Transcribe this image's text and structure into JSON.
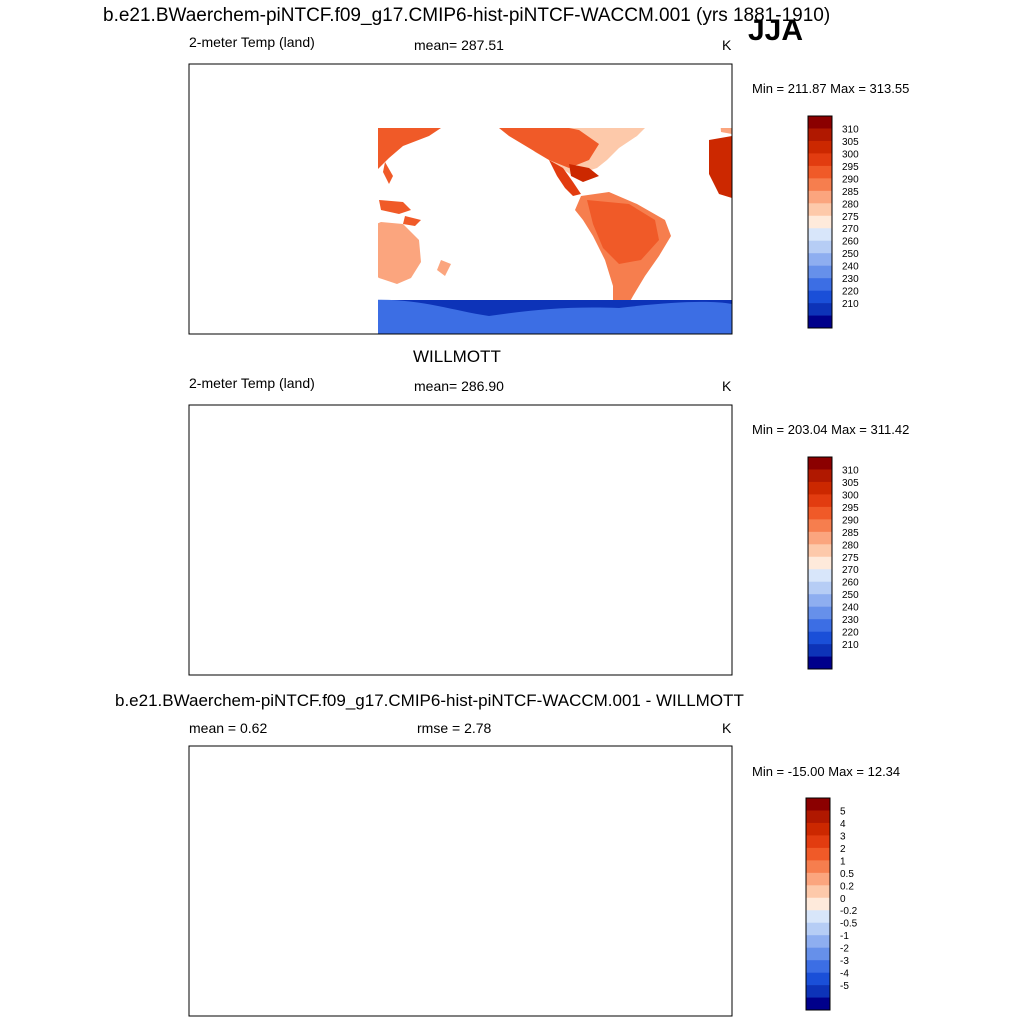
{
  "header": {
    "title": "b.e21.BWaerchem-piNTCF.f09_g17.CMIP6-hist-piNTCF-WACCM.001 (yrs 1881-1910)",
    "season": "JJA"
  },
  "panels": [
    {
      "id": "model",
      "left_label": "2-meter Temp (land)",
      "center_label": "mean= 287.51",
      "units": "K",
      "minmax": "Min = 211.87 Max = 313.55"
    },
    {
      "id": "obs",
      "title": "WILLMOTT",
      "left_label": "2-meter Temp (land)",
      "center_label": "mean= 286.90",
      "units": "K",
      "minmax": "Min = 203.04 Max = 311.42"
    },
    {
      "id": "diff",
      "title": "b.e21.BWaerchem-piNTCF.f09_g17.CMIP6-hist-piNTCF-WACCM.001 - WILLMOTT",
      "left_label": "mean =   0.62",
      "center_label": "rmse =   2.78",
      "units": "K",
      "minmax": "Min = -15.00 Max =  12.34"
    }
  ],
  "chart_data": [
    {
      "type": "heatmap",
      "title": "2-meter Temp (land)",
      "units": "K",
      "mean": 287.51,
      "min": 211.87,
      "max": 313.55,
      "colorbar": {
        "labels": [
          "310",
          "305",
          "300",
          "295",
          "290",
          "285",
          "280",
          "275",
          "270",
          "260",
          "250",
          "240",
          "230",
          "220",
          "210"
        ],
        "colors": [
          "#8b0000",
          "#b01800",
          "#cc2800",
          "#e23c10",
          "#f05a28",
          "#f67e4e",
          "#fba57e",
          "#fdc9aa",
          "#feeadb",
          "#d8e6fa",
          "#b6cdf5",
          "#8eaef0",
          "#6690ea",
          "#3c6ee4",
          "#1a4fd8",
          "#0d33b8",
          "#00008b"
        ]
      }
    },
    {
      "type": "heatmap",
      "title": "WILLMOTT",
      "units": "K",
      "mean": 286.9,
      "min": 203.04,
      "max": 311.42,
      "colorbar": {
        "labels": [
          "310",
          "305",
          "300",
          "295",
          "290",
          "285",
          "280",
          "275",
          "270",
          "260",
          "250",
          "240",
          "230",
          "220",
          "210"
        ],
        "colors": [
          "#8b0000",
          "#b01800",
          "#cc2800",
          "#e23c10",
          "#f05a28",
          "#f67e4e",
          "#fba57e",
          "#fdc9aa",
          "#feeadb",
          "#d8e6fa",
          "#b6cdf5",
          "#8eaef0",
          "#6690ea",
          "#3c6ee4",
          "#1a4fd8",
          "#0d33b8",
          "#00008b"
        ]
      }
    },
    {
      "type": "heatmap",
      "title": "b.e21.BWaerchem-piNTCF.f09_g17.CMIP6-hist-piNTCF-WACCM.001 - WILLMOTT",
      "units": "K",
      "mean": 0.62,
      "rmse": 2.78,
      "min": -15.0,
      "max": 12.34,
      "colorbar": {
        "labels": [
          "5",
          "4",
          "3",
          "2",
          "1",
          "0.5",
          "0.2",
          "0",
          "-0.2",
          "-0.5",
          "-1",
          "-2",
          "-3",
          "-4",
          "-5"
        ],
        "colors": [
          "#8b0000",
          "#b01800",
          "#cc2800",
          "#e23c10",
          "#f05a28",
          "#f67e4e",
          "#fba57e",
          "#fdc9aa",
          "#feeadb",
          "#d8e6fa",
          "#b6cdf5",
          "#8eaef0",
          "#6690ea",
          "#3c6ee4",
          "#1a4fd8",
          "#0d33b8",
          "#00008b"
        ]
      }
    }
  ]
}
